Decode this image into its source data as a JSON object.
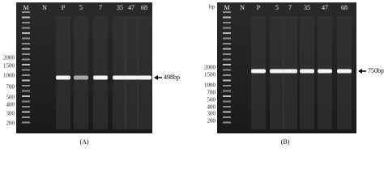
{
  "panels": [
    {
      "unit": null,
      "lanes": [
        "M",
        "N",
        "P",
        "5",
        "7",
        "35",
        "47",
        "68"
      ],
      "sizes": [
        "2000",
        "1500",
        "1000",
        "700",
        "500",
        "400",
        "300",
        "200"
      ],
      "band_label": "498bp",
      "caption": "(A)"
    },
    {
      "unit": "bp",
      "lanes": [
        "M",
        "N",
        "P",
        "5",
        "7",
        "35",
        "47",
        "68"
      ],
      "sizes": [
        "2000",
        "1500",
        "1000",
        "700",
        "500",
        "400",
        "300",
        "200"
      ],
      "band_label": "750bp",
      "caption": "(B)"
    }
  ]
}
